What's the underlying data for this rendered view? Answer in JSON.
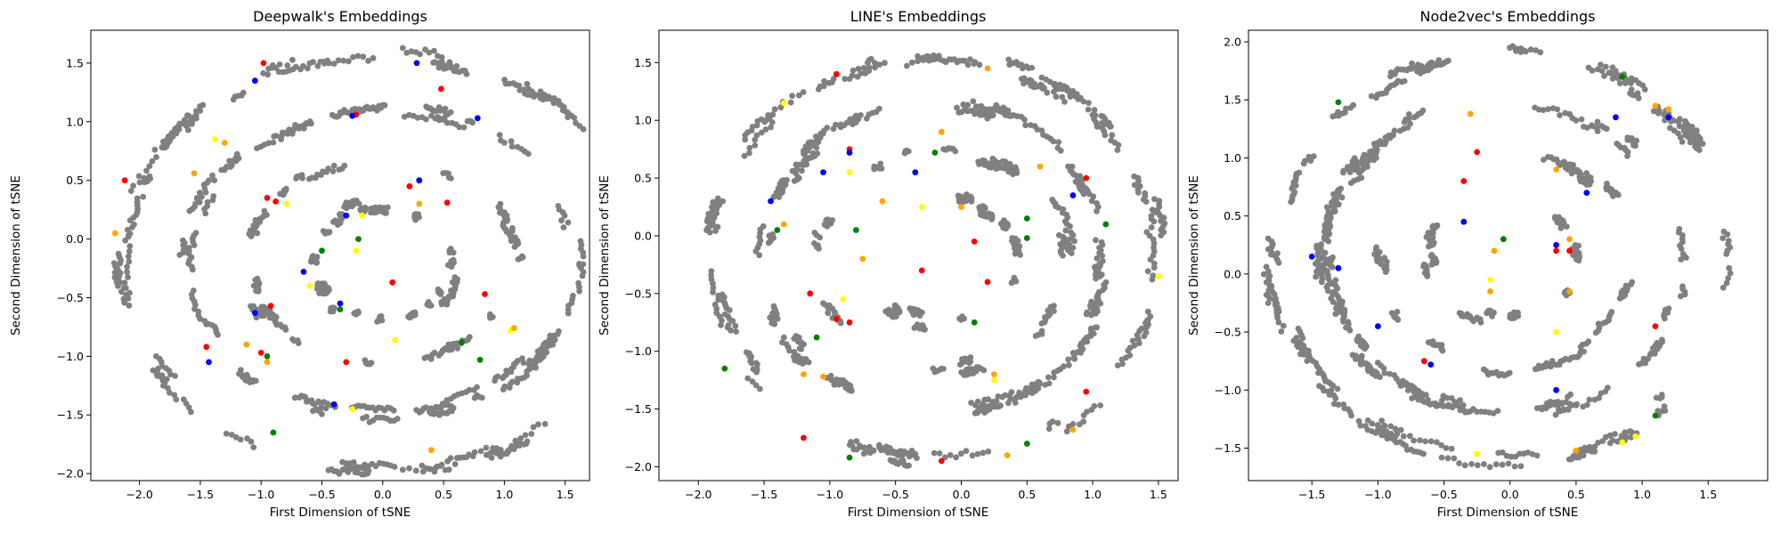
{
  "colors": {
    "background": "#ffffff",
    "frame": "#000000",
    "gray": "#808080",
    "red": "#ff0000",
    "blue": "#0000ff",
    "green": "#008000",
    "yellow": "#ffff00",
    "orange": "#ffa500"
  },
  "chart_data": [
    {
      "type": "scatter",
      "title": "Deepwalk's Embeddings",
      "xlabel": "First Dimension of tSNE",
      "ylabel": "Second Dimension of tSNE",
      "xlim": [
        -2.4,
        1.7
      ],
      "ylim": [
        -2.06,
        1.78
      ],
      "xticks": [
        -2.0,
        -1.5,
        -1.0,
        -0.5,
        0.0,
        0.5,
        1.0,
        1.5
      ],
      "yticks": [
        -2.0,
        -1.5,
        -1.0,
        -0.5,
        0.0,
        0.5,
        1.0,
        1.5
      ],
      "xticklabels": [
        "−2.0",
        "−1.5",
        "−1.0",
        "−0.5",
        "0.0",
        "0.5",
        "1.0",
        "1.5"
      ],
      "yticklabels": [
        "−2.0",
        "−1.5",
        "−1.0",
        "−0.5",
        "0.0",
        "0.5",
        "1.0",
        "1.5"
      ],
      "rings": [
        [
          0,
          -0.2,
          2.15,
          1.78
        ],
        [
          0,
          -0.2,
          1.6,
          1.3
        ],
        [
          0,
          -0.2,
          1.1,
          0.9
        ],
        [
          0,
          -0.2,
          0.6,
          0.5
        ]
      ],
      "gray_count": 1100,
      "seed": 11,
      "colored": [
        {
          "color": "red",
          "points": [
            [
              -0.98,
              1.5
            ],
            [
              -0.22,
              1.06
            ],
            [
              0.48,
              1.28
            ],
            [
              -2.12,
              0.5
            ],
            [
              0.22,
              0.45
            ],
            [
              -0.88,
              0.32
            ],
            [
              0.08,
              -0.37
            ],
            [
              -0.92,
              -0.57
            ],
            [
              0.84,
              -0.47
            ],
            [
              -1.45,
              -0.92
            ],
            [
              -1.0,
              -0.97
            ],
            [
              -0.3,
              -1.05
            ],
            [
              -0.95,
              0.35
            ],
            [
              0.53,
              0.31
            ]
          ]
        },
        {
          "color": "blue",
          "points": [
            [
              -1.05,
              1.35
            ],
            [
              -0.25,
              1.05
            ],
            [
              0.28,
              1.5
            ],
            [
              0.78,
              1.03
            ],
            [
              0.3,
              0.5
            ],
            [
              -0.3,
              0.2
            ],
            [
              -1.05,
              -0.63
            ],
            [
              -0.35,
              -0.55
            ],
            [
              -1.43,
              -1.05
            ],
            [
              -0.4,
              -1.41
            ],
            [
              -0.65,
              -0.28
            ]
          ]
        },
        {
          "color": "green",
          "points": [
            [
              -0.5,
              -0.1
            ],
            [
              0.65,
              -0.88
            ],
            [
              0.8,
              -1.03
            ],
            [
              -0.9,
              -1.65
            ],
            [
              -0.2,
              0.0
            ],
            [
              -0.35,
              -0.6
            ],
            [
              -0.95,
              -1.0
            ]
          ]
        },
        {
          "color": "yellow",
          "points": [
            [
              -1.38,
              0.85
            ],
            [
              -0.79,
              0.3
            ],
            [
              -0.17,
              0.2
            ],
            [
              -0.22,
              -0.1
            ],
            [
              0.1,
              -0.86
            ],
            [
              1.05,
              -0.78
            ],
            [
              -0.6,
              -0.4
            ],
            [
              -0.25,
              -1.45
            ]
          ]
        },
        {
          "color": "orange",
          "points": [
            [
              -1.55,
              0.56
            ],
            [
              -2.2,
              0.05
            ],
            [
              -1.12,
              -0.9
            ],
            [
              -0.95,
              -1.05
            ],
            [
              0.4,
              -1.8
            ],
            [
              1.08,
              -0.76
            ],
            [
              -1.3,
              0.82
            ],
            [
              0.3,
              0.3
            ]
          ]
        }
      ]
    },
    {
      "type": "scatter",
      "title": "LINE's Embeddings",
      "xlabel": "First Dimension of tSNE",
      "ylabel": "Second Dimension of tSNE",
      "xlim": [
        -2.3,
        1.65
      ],
      "ylim": [
        -2.12,
        1.78
      ],
      "xticks": [
        -2.0,
        -1.5,
        -1.0,
        -0.5,
        0.0,
        0.5,
        1.0,
        1.5
      ],
      "yticks": [
        -2.0,
        -1.5,
        -1.0,
        -0.5,
        0.0,
        0.5,
        1.0,
        1.5
      ],
      "xticklabels": [
        "−2.0",
        "−1.5",
        "−1.0",
        "−0.5",
        "0.0",
        "0.5",
        "1.0",
        "1.5"
      ],
      "yticklabels": [
        "−2.0",
        "−1.5",
        "−1.0",
        "−0.5",
        "0.0",
        "0.5",
        "1.0",
        "1.5"
      ],
      "rings": [
        [
          -0.2,
          -0.2,
          1.7,
          1.75
        ],
        [
          -0.2,
          -0.2,
          1.3,
          1.35
        ],
        [
          -0.15,
          -0.2,
          0.95,
          0.95
        ],
        [
          -0.15,
          -0.2,
          0.55,
          0.55
        ]
      ],
      "gray_count": 1100,
      "seed": 23,
      "colored": [
        {
          "color": "red",
          "points": [
            [
              -0.95,
              1.4
            ],
            [
              -0.85,
              0.75
            ],
            [
              -0.3,
              -0.3
            ],
            [
              0.2,
              -0.4
            ],
            [
              -1.15,
              -0.5
            ],
            [
              -0.85,
              -0.75
            ],
            [
              -1.2,
              -1.75
            ],
            [
              -0.15,
              -1.95
            ],
            [
              0.95,
              -1.35
            ],
            [
              0.1,
              -0.05
            ],
            [
              0.95,
              0.5
            ],
            [
              -0.95,
              -0.72
            ]
          ]
        },
        {
          "color": "blue",
          "points": [
            [
              -0.85,
              0.72
            ],
            [
              -1.45,
              0.3
            ],
            [
              -0.35,
              0.55
            ],
            [
              0.85,
              0.35
            ],
            [
              -1.05,
              0.55
            ]
          ]
        },
        {
          "color": "green",
          "points": [
            [
              -0.2,
              0.72
            ],
            [
              -1.4,
              0.05
            ],
            [
              0.5,
              0.15
            ],
            [
              0.5,
              -0.02
            ],
            [
              1.1,
              0.1
            ],
            [
              -1.1,
              -0.88
            ],
            [
              -1.8,
              -1.15
            ],
            [
              -0.85,
              -1.92
            ],
            [
              0.5,
              -1.8
            ],
            [
              0.1,
              -0.75
            ],
            [
              -0.8,
              0.05
            ]
          ]
        },
        {
          "color": "yellow",
          "points": [
            [
              -0.85,
              0.55
            ],
            [
              -0.9,
              -0.55
            ],
            [
              -0.3,
              0.25
            ],
            [
              1.5,
              -0.35
            ],
            [
              0.25,
              -1.25
            ],
            [
              -1.35,
              1.15
            ]
          ]
        },
        {
          "color": "orange",
          "points": [
            [
              -0.6,
              0.3
            ],
            [
              -0.75,
              -0.2
            ],
            [
              -1.35,
              0.1
            ],
            [
              -1.2,
              -1.2
            ],
            [
              0.25,
              -1.2
            ],
            [
              0.85,
              -1.68
            ],
            [
              0.6,
              0.6
            ],
            [
              0.2,
              1.45
            ],
            [
              0.0,
              0.25
            ],
            [
              -0.15,
              0.9
            ],
            [
              -1.05,
              -1.22
            ],
            [
              0.35,
              -1.9
            ]
          ]
        }
      ]
    },
    {
      "type": "scatter",
      "title": "Node2vec's Embeddings",
      "xlabel": "First Dimension of tSNE",
      "ylabel": "Second Dimension of tSNE",
      "xlim": [
        -1.98,
        1.95
      ],
      "ylim": [
        -1.78,
        2.1
      ],
      "xticks": [
        -1.5,
        -1.0,
        -0.5,
        0.0,
        0.5,
        1.0,
        1.5
      ],
      "yticks": [
        -1.5,
        -1.0,
        -0.5,
        0.0,
        0.5,
        1.0,
        1.5,
        2.0
      ],
      "xticklabels": [
        "−1.5",
        "−1.0",
        "−0.5",
        "0.0",
        "0.5",
        "1.0",
        "1.5"
      ],
      "yticklabels": [
        "−1.5",
        "−1.0",
        "−0.5",
        "0.0",
        "0.5",
        "1.0",
        "1.5",
        "2.0"
      ],
      "rings": [
        [
          -0.05,
          0.15,
          1.75,
          1.75
        ],
        [
          -0.05,
          0.15,
          1.35,
          1.35
        ],
        [
          -0.05,
          0.15,
          0.95,
          0.95
        ],
        [
          -0.05,
          0.15,
          0.55,
          0.55
        ]
      ],
      "gray_count": 1100,
      "seed": 37,
      "colored": [
        {
          "color": "red",
          "points": [
            [
              -0.25,
              1.05
            ],
            [
              -0.35,
              0.8
            ],
            [
              0.45,
              0.2
            ],
            [
              -0.65,
              -0.75
            ],
            [
              0.35,
              0.2
            ],
            [
              1.1,
              -0.45
            ]
          ]
        },
        {
          "color": "blue",
          "points": [
            [
              0.8,
              1.35
            ],
            [
              0.58,
              0.7
            ],
            [
              -0.35,
              0.45
            ],
            [
              0.35,
              0.25
            ],
            [
              -1.5,
              0.15
            ],
            [
              -1.0,
              -0.45
            ],
            [
              -0.6,
              -0.78
            ],
            [
              0.35,
              -1.0
            ],
            [
              1.2,
              1.35
            ],
            [
              -1.3,
              0.05
            ]
          ]
        },
        {
          "color": "green",
          "points": [
            [
              -1.3,
              1.48
            ],
            [
              1.1,
              -1.22
            ],
            [
              0.85,
              1.7
            ],
            [
              -0.05,
              0.3
            ]
          ]
        },
        {
          "color": "yellow",
          "points": [
            [
              -0.25,
              -1.55
            ],
            [
              0.85,
              -1.45
            ],
            [
              0.95,
              -1.4
            ],
            [
              -0.15,
              -0.05
            ],
            [
              0.35,
              -0.5
            ]
          ]
        },
        {
          "color": "orange",
          "points": [
            [
              1.1,
              1.45
            ],
            [
              1.2,
              1.42
            ],
            [
              0.35,
              0.9
            ],
            [
              -0.3,
              1.38
            ],
            [
              0.45,
              0.3
            ],
            [
              -0.15,
              -0.15
            ],
            [
              0.45,
              -0.15
            ],
            [
              0.5,
              -1.52
            ],
            [
              -0.12,
              0.2
            ]
          ]
        }
      ]
    }
  ]
}
